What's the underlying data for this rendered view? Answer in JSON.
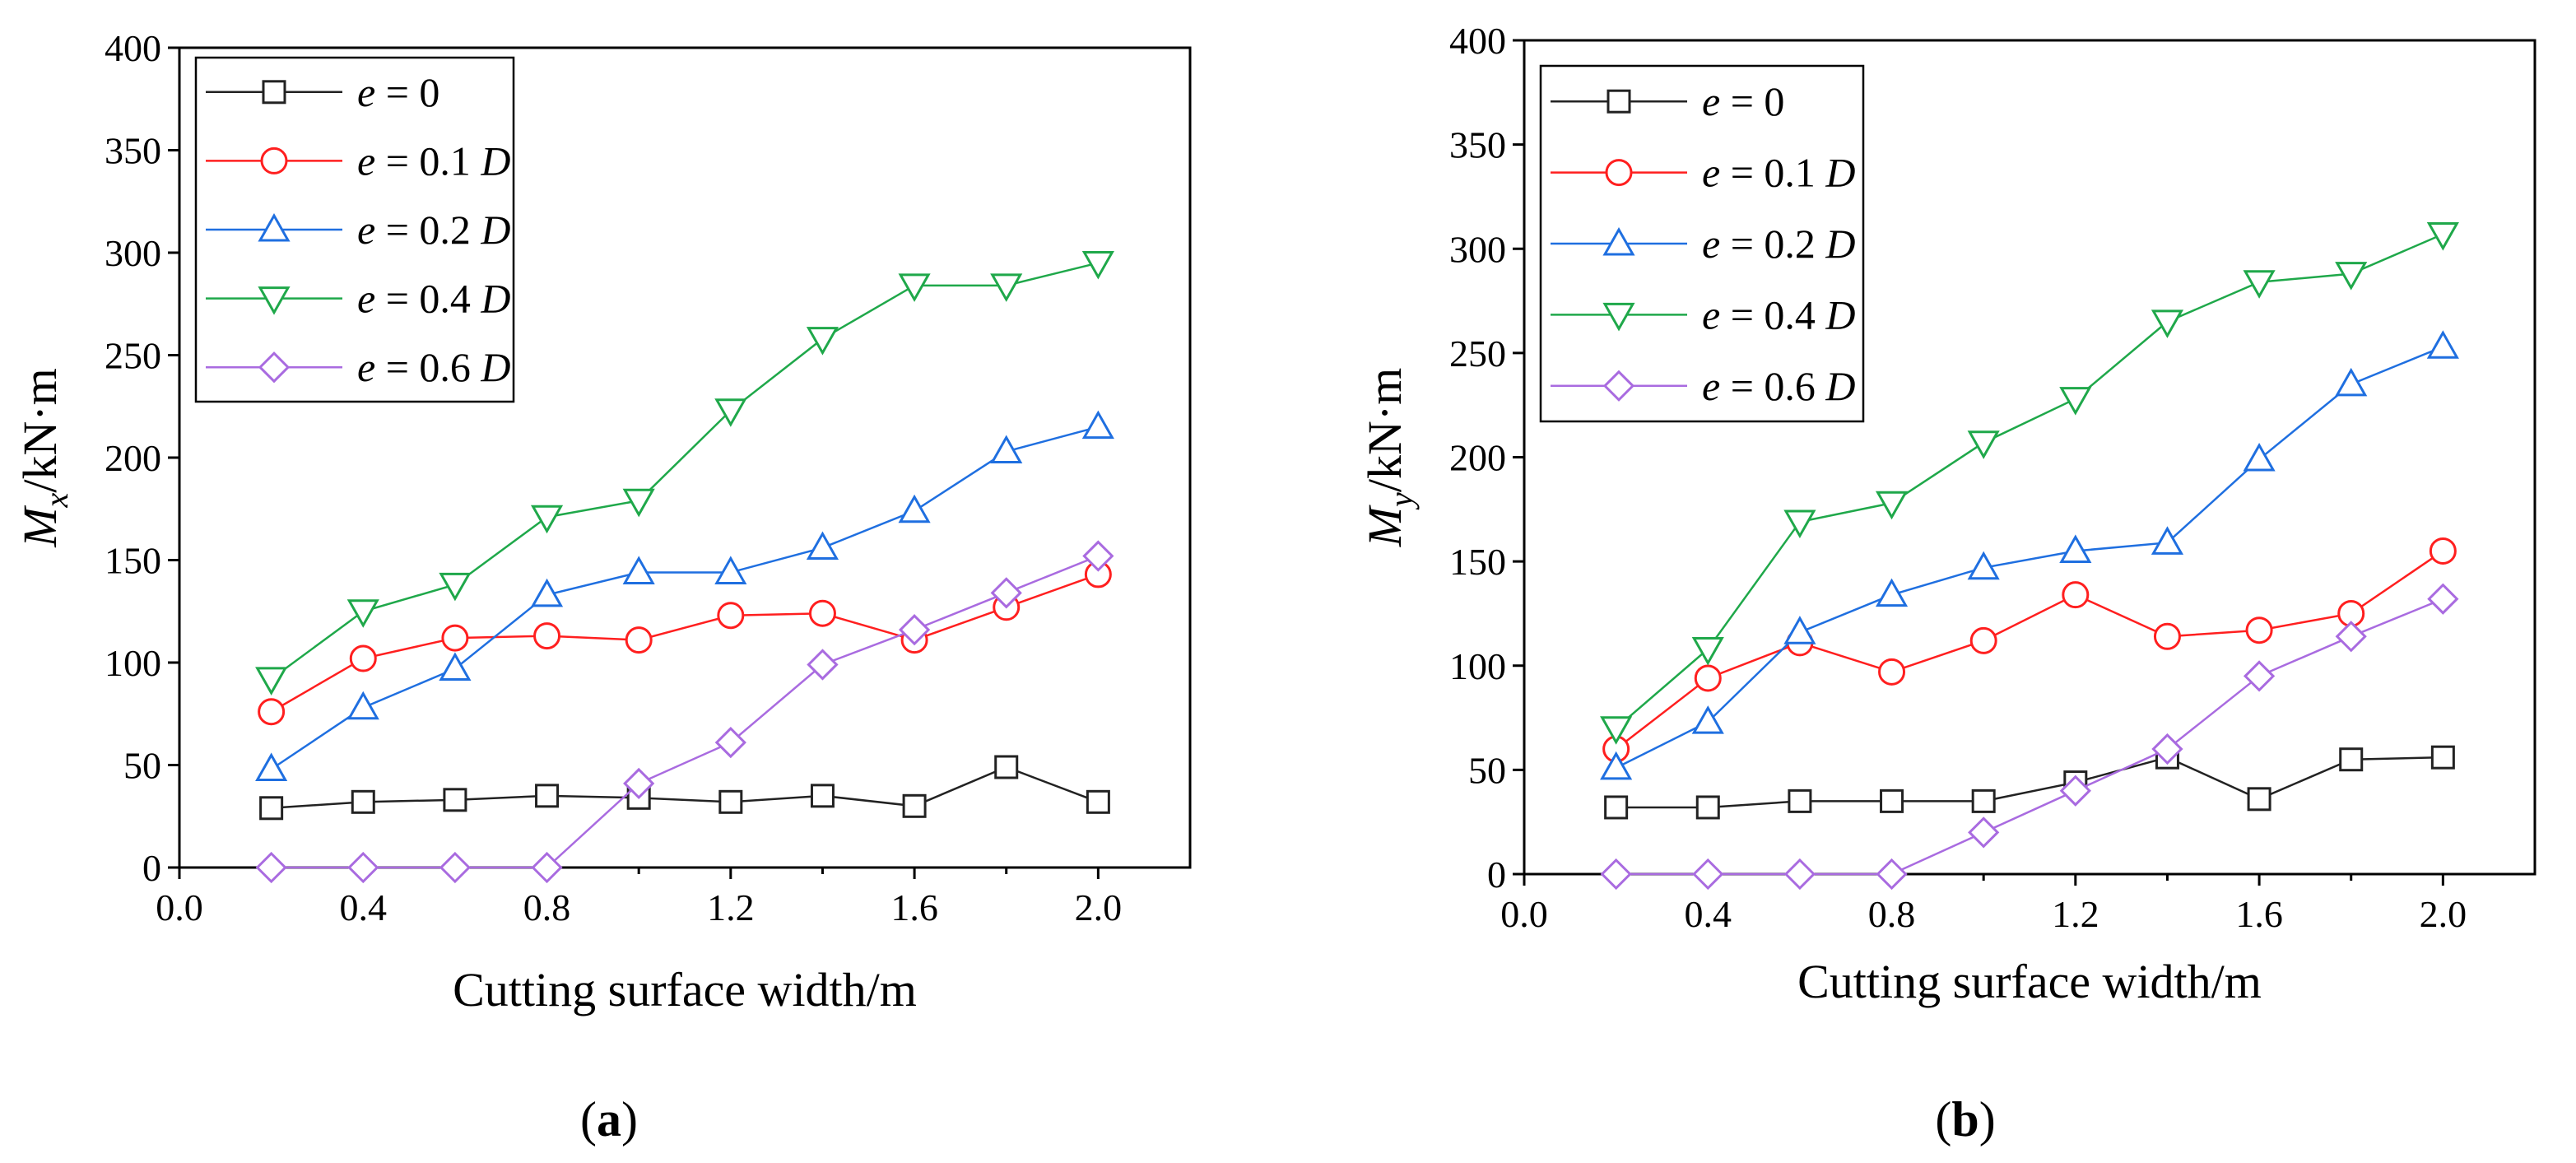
{
  "chart_data": [
    {
      "type": "line",
      "panel_label": "a",
      "xlabel": "Cutting surface width/m",
      "ylabel": {
        "var": "M",
        "sub": "x",
        "unit": "/kN·m"
      },
      "xlim": [
        0.0,
        2.2
      ],
      "ylim": [
        0,
        400
      ],
      "xticks": [
        0.0,
        0.4,
        0.8,
        1.2,
        1.6,
        2.0
      ],
      "xtick_labels": [
        "0.0",
        "0.4",
        "0.8",
        "1.2",
        "1.6",
        "2.0"
      ],
      "yticks": [
        0,
        50,
        100,
        150,
        200,
        250,
        300,
        350,
        400
      ],
      "ytick_labels": [
        "0",
        "50",
        "100",
        "150",
        "200",
        "250",
        "300",
        "350",
        "400"
      ],
      "grid": false,
      "legend_position": "top-left",
      "x": [
        0.2,
        0.4,
        0.6,
        0.8,
        1.0,
        1.2,
        1.4,
        1.6,
        1.8,
        2.0
      ],
      "series": [
        {
          "name": "e = 0",
          "label_var": "e",
          "label_rest": " = 0",
          "label_unit": "",
          "marker": "square",
          "color": "#222222",
          "values": [
            29,
            32,
            33,
            35,
            34,
            32,
            35,
            30,
            49,
            32
          ]
        },
        {
          "name": "e = 0.1 D",
          "label_var": "e",
          "label_rest": " = 0.1 ",
          "label_unit": "D",
          "marker": "circle",
          "color": "#ff1f1f",
          "values": [
            76,
            102,
            112,
            113,
            111,
            123,
            124,
            111,
            127,
            143
          ]
        },
        {
          "name": "e = 0.2 D",
          "label_var": "e",
          "label_rest": " = 0.2 ",
          "label_unit": "D",
          "marker": "triangle-up",
          "color": "#1f6fe0",
          "values": [
            48,
            78,
            97,
            133,
            144,
            144,
            156,
            174,
            203,
            215
          ]
        },
        {
          "name": "e = 0.4 D",
          "label_var": "e",
          "label_rest": " = 0.4 ",
          "label_unit": "D",
          "marker": "triangle-down",
          "color": "#1fa84a",
          "values": [
            92,
            125,
            138,
            171,
            179,
            223,
            258,
            284,
            284,
            295
          ]
        },
        {
          "name": "e = 0.6 D",
          "label_var": "e",
          "label_rest": " = 0.6 ",
          "label_unit": "D",
          "marker": "diamond",
          "color": "#a96be0",
          "values": [
            0,
            0,
            0,
            0,
            41,
            61,
            99,
            116,
            134,
            152
          ]
        }
      ]
    },
    {
      "type": "line",
      "panel_label": "b",
      "xlabel": "Cutting surface width/m",
      "ylabel": {
        "var": "M",
        "sub": "y",
        "unit": "/kN·m"
      },
      "xlim": [
        0.0,
        2.2
      ],
      "ylim": [
        0,
        400
      ],
      "xticks": [
        0.0,
        0.4,
        0.8,
        1.2,
        1.6,
        2.0
      ],
      "xtick_labels": [
        "0.0",
        "0.4",
        "0.8",
        "1.2",
        "1.6",
        "2.0"
      ],
      "yticks": [
        0,
        50,
        100,
        150,
        200,
        250,
        300,
        350,
        400
      ],
      "ytick_labels": [
        "0",
        "50",
        "100",
        "150",
        "200",
        "250",
        "300",
        "350",
        "400"
      ],
      "grid": false,
      "legend_position": "top-left",
      "x": [
        0.2,
        0.4,
        0.6,
        0.8,
        1.0,
        1.2,
        1.4,
        1.6,
        1.8,
        2.0
      ],
      "series": [
        {
          "name": "e = 0",
          "label_var": "e",
          "label_rest": " = 0",
          "label_unit": "",
          "marker": "square",
          "color": "#222222",
          "values": [
            32,
            32,
            35,
            35,
            35,
            44,
            56,
            36,
            55,
            56
          ]
        },
        {
          "name": "e = 0.1 D",
          "label_var": "e",
          "label_rest": " = 0.1 ",
          "label_unit": "D",
          "marker": "circle",
          "color": "#ff1f1f",
          "values": [
            60,
            94,
            111,
            97,
            112,
            134,
            114,
            117,
            125,
            155
          ]
        },
        {
          "name": "e = 0.2 D",
          "label_var": "e",
          "label_rest": " = 0.2 ",
          "label_unit": "D",
          "marker": "triangle-up",
          "color": "#1f6fe0",
          "values": [
            51,
            73,
            116,
            134,
            147,
            155,
            159,
            199,
            235,
            253
          ]
        },
        {
          "name": "e = 0.4 D",
          "label_var": "e",
          "label_rest": " = 0.4 ",
          "label_unit": "D",
          "marker": "triangle-down",
          "color": "#1fa84a",
          "values": [
            70,
            108,
            169,
            178,
            207,
            228,
            265,
            284,
            288,
            307
          ]
        },
        {
          "name": "e = 0.6 D",
          "label_var": "e",
          "label_rest": " = 0.6 ",
          "label_unit": "D",
          "marker": "diamond",
          "color": "#a96be0",
          "values": [
            0,
            0,
            0,
            0,
            20,
            40,
            60,
            95,
            114,
            132
          ]
        }
      ]
    }
  ]
}
